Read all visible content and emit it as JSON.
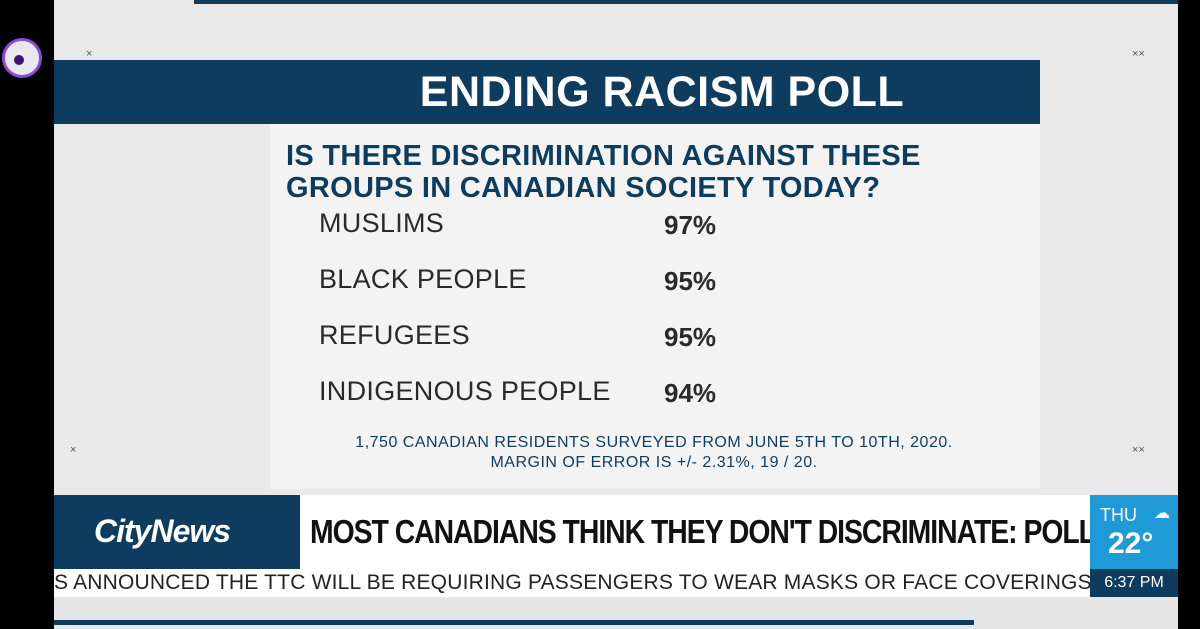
{
  "overlay": {
    "icon": "bubble-icon"
  },
  "poll": {
    "title": "ENDING RACISM POLL",
    "question_line1": "IS THERE DISCRIMINATION AGAINST THESE",
    "question_line2": "GROUPS IN CANADIAN SOCIETY TODAY?",
    "rows": [
      {
        "label": "MUSLIMS",
        "value": "97%"
      },
      {
        "label": "BLACK PEOPLE",
        "value": "95%"
      },
      {
        "label": "REFUGEES",
        "value": "95%"
      },
      {
        "label": "INDIGENOUS PEOPLE",
        "value": "94%"
      }
    ],
    "footnote_line1": "1,750 CANADIAN RESIDENTS SURVEYED FROM JUNE 5TH TO 10TH, 2020.",
    "footnote_line2": "MARGIN OF ERROR IS +/- 2.31%, 19 / 20."
  },
  "lower_third": {
    "brand": "CityNews",
    "headline": "MOST CANADIANS THINK THEY DON'T DISCRIMINATE: POLL",
    "weather": {
      "day": "THU",
      "temp": "22°",
      "icon": "partly-cloudy-icon"
    },
    "ticker": "S ANNOUNCED THE TTC WILL BE REQUIRING PASSENGERS TO WEAR MASKS OR FACE COVERINGS AS OF",
    "time": "6:37 PM"
  },
  "colors": {
    "navy": "#0d3c5e",
    "weather_blue": "#1e9bd6",
    "overlay_ring": "#8a4bd6"
  }
}
